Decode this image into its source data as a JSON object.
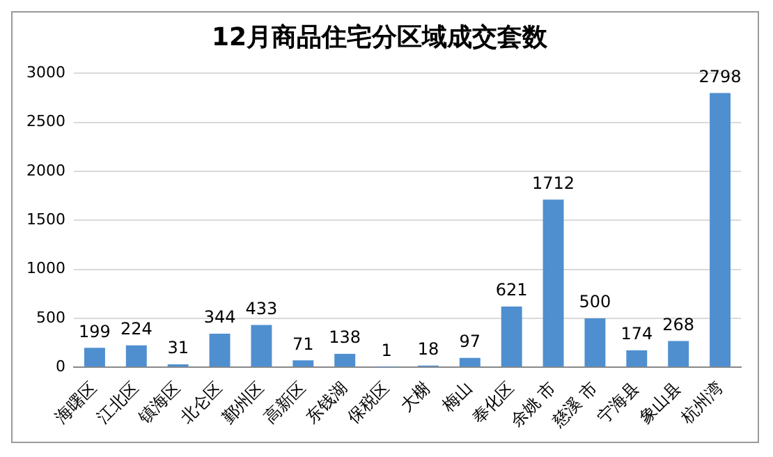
{
  "chart_data": {
    "type": "bar",
    "title": "12月商品住宅分区域成交套数",
    "categories": [
      "海曙区",
      "江北区",
      "镇海区",
      "北仑区",
      "鄞州区",
      "高新区",
      "东钱湖",
      "保税区",
      "大榭",
      "梅山",
      "奉化区",
      "余姚 市",
      "慈溪 市",
      "宁海县",
      "象山县",
      "杭州湾"
    ],
    "values": [
      199,
      224,
      31,
      344,
      433,
      71,
      138,
      1,
      18,
      97,
      621,
      1712,
      500,
      174,
      268,
      2798
    ],
    "color": "#4f8fd0",
    "ylim": [
      0,
      3000
    ],
    "yticks": [
      0,
      500,
      1000,
      1500,
      2000,
      2500,
      3000
    ],
    "grid": "y",
    "data_labels": true,
    "legend": false
  }
}
